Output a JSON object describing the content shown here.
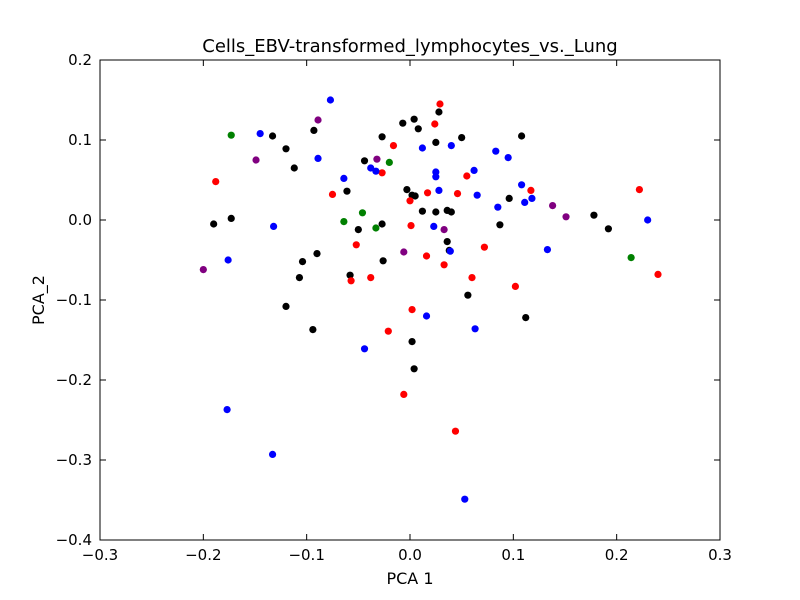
{
  "chart_data": {
    "type": "scatter",
    "title": "Cells_EBV-transformed_lymphocytes_vs._Lung",
    "xlabel": "PCA 1",
    "ylabel": "PCA_2",
    "xlim": [
      -0.3,
      0.3
    ],
    "ylim": [
      -0.4,
      0.2
    ],
    "xticks": [
      -0.3,
      -0.2,
      -0.1,
      0.0,
      0.1,
      0.2,
      0.3
    ],
    "xtick_labels": [
      "−0.3",
      "−0.2",
      "−0.1",
      "0.0",
      "0.1",
      "0.2",
      "0.3"
    ],
    "yticks": [
      -0.4,
      -0.3,
      -0.2,
      -0.1,
      0.0,
      0.1,
      0.2
    ],
    "ytick_labels": [
      "−0.4",
      "−0.3",
      "−0.2",
      "−0.1",
      "0.0",
      "0.1",
      "0.2"
    ],
    "grid": false,
    "legend": "none",
    "series": [
      {
        "color": "#000000",
        "points": [
          [
            -0.133,
            0.105
          ],
          [
            -0.12,
            0.089
          ],
          [
            -0.112,
            0.065
          ],
          [
            -0.093,
            0.112
          ],
          [
            -0.061,
            0.036
          ],
          [
            -0.044,
            0.074
          ],
          [
            -0.027,
            0.104
          ],
          [
            -0.007,
            0.121
          ],
          [
            0.004,
            0.126
          ],
          [
            0.008,
            0.114
          ],
          [
            0.025,
            0.097
          ],
          [
            0.05,
            0.103
          ],
          [
            0.108,
            0.105
          ],
          [
            0.028,
            0.135
          ],
          [
            -0.19,
            -0.005
          ],
          [
            -0.173,
            0.002
          ],
          [
            -0.09,
            -0.042
          ],
          [
            -0.05,
            -0.012
          ],
          [
            -0.027,
            -0.005
          ],
          [
            -0.003,
            0.038
          ],
          [
            0.002,
            0.031
          ],
          [
            0.005,
            0.03
          ],
          [
            0.012,
            0.011
          ],
          [
            0.036,
            0.012
          ],
          [
            0.04,
            0.01
          ],
          [
            0.025,
            0.01
          ],
          [
            0.087,
            -0.006
          ],
          [
            0.178,
            0.006
          ],
          [
            0.192,
            -0.011
          ],
          [
            -0.104,
            -0.052
          ],
          [
            -0.107,
            -0.072
          ],
          [
            -0.058,
            -0.069
          ],
          [
            -0.026,
            -0.051
          ],
          [
            0.036,
            -0.027
          ],
          [
            0.038,
            -0.038
          ],
          [
            -0.12,
            -0.108
          ],
          [
            -0.094,
            -0.137
          ],
          [
            0.056,
            -0.094
          ],
          [
            0.112,
            -0.122
          ],
          [
            0.002,
            -0.152
          ],
          [
            0.004,
            -0.186
          ],
          [
            0.096,
            0.027
          ]
        ]
      },
      {
        "color": "#ff0000",
        "points": [
          [
            0.029,
            0.145
          ],
          [
            0.024,
            0.12
          ],
          [
            -0.016,
            0.093
          ],
          [
            -0.075,
            0.032
          ],
          [
            -0.027,
            0.059
          ],
          [
            0.017,
            0.034
          ],
          [
            0.046,
            0.033
          ],
          [
            0.055,
            0.055
          ],
          [
            0.117,
            0.037
          ],
          [
            0.222,
            0.038
          ],
          [
            -0.188,
            0.048
          ],
          [
            0.0,
            0.024
          ],
          [
            0.001,
            -0.007
          ],
          [
            0.016,
            -0.045
          ],
          [
            0.033,
            -0.056
          ],
          [
            0.06,
            -0.072
          ],
          [
            0.072,
            -0.034
          ],
          [
            0.102,
            -0.083
          ],
          [
            0.24,
            -0.068
          ],
          [
            -0.052,
            -0.031
          ],
          [
            -0.057,
            -0.076
          ],
          [
            -0.038,
            -0.072
          ],
          [
            0.002,
            -0.112
          ],
          [
            -0.021,
            -0.139
          ],
          [
            -0.006,
            -0.218
          ],
          [
            0.044,
            -0.264
          ]
        ]
      },
      {
        "color": "#0000ff",
        "points": [
          [
            -0.077,
            0.15
          ],
          [
            -0.145,
            0.108
          ],
          [
            -0.089,
            0.077
          ],
          [
            0.012,
            0.09
          ],
          [
            0.04,
            0.093
          ],
          [
            0.025,
            0.06
          ],
          [
            0.025,
            0.054
          ],
          [
            0.062,
            0.062
          ],
          [
            0.083,
            0.086
          ],
          [
            0.095,
            0.078
          ],
          [
            -0.064,
            0.052
          ],
          [
            -0.038,
            0.065
          ],
          [
            -0.033,
            0.061
          ],
          [
            0.028,
            0.037
          ],
          [
            0.065,
            0.031
          ],
          [
            0.085,
            0.016
          ],
          [
            0.108,
            0.044
          ],
          [
            0.111,
            0.022
          ],
          [
            0.118,
            0.027
          ],
          [
            0.23,
            0.0
          ],
          [
            -0.132,
            -0.008
          ],
          [
            0.023,
            -0.008
          ],
          [
            0.039,
            -0.039
          ],
          [
            0.133,
            -0.037
          ],
          [
            -0.176,
            -0.05
          ],
          [
            0.016,
            -0.12
          ],
          [
            0.063,
            -0.136
          ],
          [
            -0.044,
            -0.161
          ],
          [
            -0.177,
            -0.237
          ],
          [
            -0.133,
            -0.293
          ],
          [
            0.053,
            -0.349
          ]
        ]
      },
      {
        "color": "#008000",
        "points": [
          [
            -0.173,
            0.106
          ],
          [
            -0.02,
            0.072
          ],
          [
            -0.046,
            0.009
          ],
          [
            -0.064,
            -0.002
          ],
          [
            -0.033,
            -0.01
          ],
          [
            0.214,
            -0.047
          ]
        ]
      },
      {
        "color": "#800080",
        "points": [
          [
            -0.089,
            0.125
          ],
          [
            -0.149,
            0.075
          ],
          [
            -0.032,
            0.076
          ],
          [
            0.033,
            -0.012
          ],
          [
            0.138,
            0.018
          ],
          [
            0.151,
            0.004
          ],
          [
            -0.006,
            -0.04
          ],
          [
            -0.2,
            -0.062
          ]
        ]
      }
    ]
  }
}
